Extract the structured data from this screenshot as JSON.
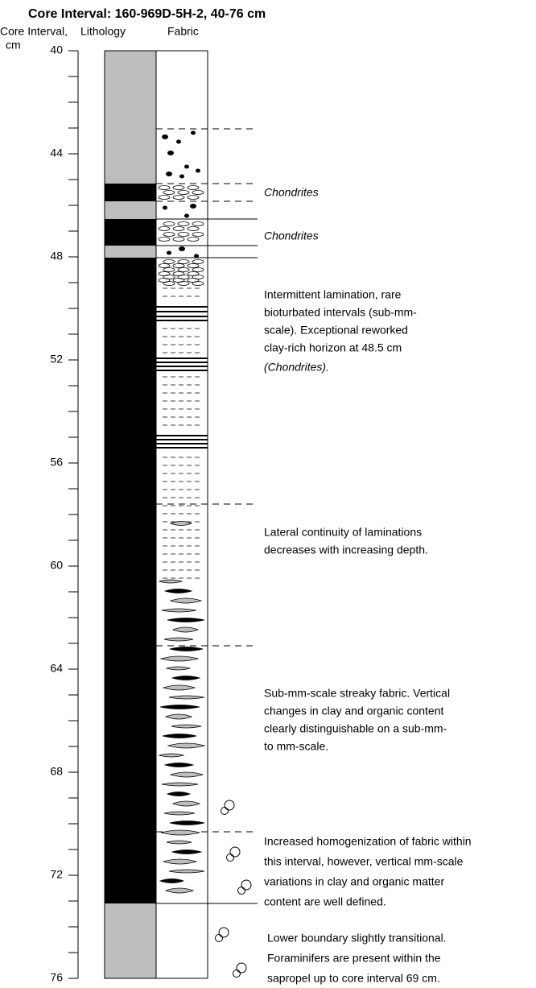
{
  "title": "Core Interval: 160-969D-5H-2, 40-76 cm",
  "headers": {
    "depth": [
      "Core Interval,",
      "cm"
    ],
    "lithology": "Lithology",
    "fabric": "Fabric"
  },
  "depth_axis": {
    "ylim": [
      40,
      76
    ],
    "yticks": [
      40,
      44,
      48,
      52,
      56,
      60,
      64,
      68,
      72,
      76
    ]
  },
  "annotations": [
    {
      "lines": [
        "Chondrites"
      ],
      "italic": true
    },
    {
      "lines": [
        "Chondrites"
      ],
      "italic": true
    },
    {
      "lines": [
        "Intermittent lamination, rare",
        "bioturbated intervals (sub-mm-",
        "scale). Exceptional reworked",
        "clay-rich horizon at 48.5 cm"
      ],
      "italic_line": "(Chondrites)."
    },
    {
      "lines": [
        "Lateral continuity of laminations",
        "decreases with increasing depth."
      ]
    },
    {
      "lines": [
        "Sub-mm-scale streaky fabric. Vertical",
        "changes in clay and organic content",
        "clearly distinguishable on a sub-mm-",
        "to mm-scale."
      ]
    },
    {
      "lines": [
        "Increased homogenization of fabric within",
        "this interval, however, vertical mm-scale",
        "variations in clay and organic matter",
        "content are well defined."
      ]
    },
    {
      "lines": [
        "Lower boundary slightly transitional.",
        "Foraminifers are present within the",
        "sapropel up to core interval 69 cm."
      ]
    }
  ]
}
